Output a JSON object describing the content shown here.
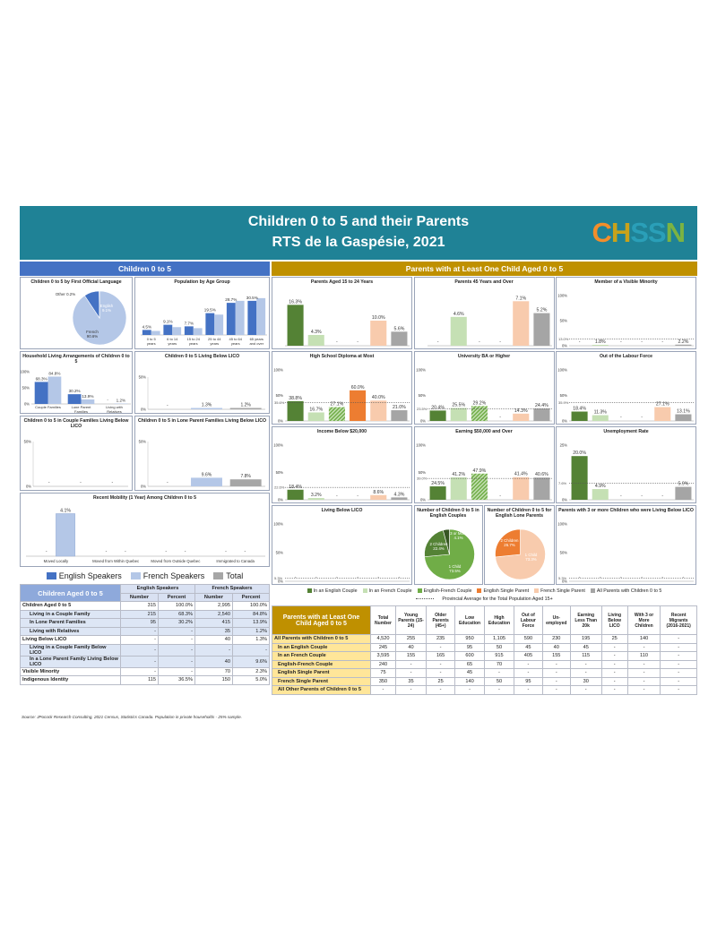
{
  "header": {
    "title": "Children 0 to 5 and their Parents",
    "subtitle": "RTS de la Gaspésie, 2021",
    "logo": [
      "C",
      "H",
      "S",
      "S",
      "N"
    ],
    "logo_colors": [
      "#f28e2b",
      "#c8a21a",
      "#2a9fb8",
      "#2a9fb8",
      "#7cb342"
    ]
  },
  "colors": {
    "banner": "#1f8296",
    "left_header": "#4472c4",
    "right_header": "#bf9000",
    "dark_green": "#548235",
    "light_green": "#c5e0b4",
    "hatch_green": "#70ad47",
    "orange": "#ed7d31",
    "peach": "#f8cbad",
    "grey": "#a5a5a5",
    "dark_blue": "#4472c4",
    "light_blue": "#b4c7e7",
    "mid_grey": "#a6a6a6",
    "table_head": "#d9e1f2",
    "right_table_head": "#ffe699",
    "right_row_bg": "#fff2cc"
  },
  "left_section_title": "Children 0 to 5",
  "right_section_title": "Parents with at Least One Child Aged 0 to 5",
  "legend_left": [
    {
      "label": "English Speakers",
      "color": "#4472c4"
    },
    {
      "label": "French Speakers",
      "color": "#b4c7e7"
    },
    {
      "label": "Total",
      "color": "#a6a6a6"
    }
  ],
  "legend_right": {
    "items": [
      {
        "label": "In an English Couple",
        "color": "#548235"
      },
      {
        "label": "In an French Couple",
        "color": "#c5e0b4"
      },
      {
        "label": "English-French Couple",
        "color": "#70ad47"
      },
      {
        "label": "English Single Parent",
        "color": "#ed7d31"
      },
      {
        "label": "French Single Parent",
        "color": "#f8cbad"
      },
      {
        "label": "All Parents with Children 0 to 5",
        "color": "#a5a5a5"
      }
    ],
    "note": "Provincial Average for the Total Population Aged 15+"
  },
  "chart_data": [
    {
      "id": "lang",
      "type": "pie",
      "title": "Children 0 to 5 by First Official Language",
      "slices": [
        {
          "label": "French",
          "value": 90.6,
          "text": "French\n90.6%"
        },
        {
          "label": "English",
          "value": 9.1,
          "text": "English\n9.1%"
        },
        {
          "label": "Other",
          "value": 0.2,
          "text": "Other 0.2%"
        }
      ]
    },
    {
      "id": "age",
      "type": "bar",
      "title": "Population by Age Group",
      "categories": [
        "0 to 5 years",
        "6 to 14 years",
        "15 to 24 years",
        "25 to 44 years",
        "45 to 64 years",
        "65 years and over"
      ],
      "cat_lines": [
        [
          "0 to 5",
          "years"
        ],
        [
          "6 to 14",
          "years"
        ],
        [
          "15 to 24",
          "years"
        ],
        [
          "25 to 44",
          "years"
        ],
        [
          "45 to 64",
          "years"
        ],
        [
          "65 years",
          "and over"
        ]
      ],
      "series": [
        {
          "values": [
            4.5,
            9.1,
            7.7,
            19.5,
            28.7,
            30.5
          ]
        },
        {
          "values": [
            3.6,
            7.0,
            6.1,
            18.2,
            30.5,
            32.9
          ]
        }
      ],
      "labels": [
        "4.5%",
        "9.1%",
        "7.7%",
        "19.5%",
        "28.7%",
        "30.5%"
      ],
      "ylim": [
        0,
        40
      ]
    },
    {
      "id": "household",
      "type": "bar",
      "title": "Household Living Arrangements of Children 0 to 5",
      "categories": [
        "Couple Families",
        "Lone Parent Families",
        "Living with Relatives"
      ],
      "cat_lines": [
        [
          "Couple Families"
        ],
        [
          "Lone Parent",
          "Families"
        ],
        [
          "Living with",
          "Relatives"
        ]
      ],
      "series": [
        {
          "values": [
            68.3,
            30.2,
            null
          ],
          "labels": [
            "68.3%",
            "30.2%",
            "-"
          ]
        },
        {
          "values": [
            84.8,
            13.9,
            1.2
          ],
          "labels": [
            "84.8%",
            "13.9%",
            "1.2%"
          ]
        }
      ],
      "yticks": [
        "100%",
        "50%",
        "0%"
      ],
      "ylim": [
        0,
        100
      ]
    },
    {
      "id": "lico",
      "type": "bar",
      "title": "Children 0 to 5 Living Below LICO",
      "series": [
        {
          "values": [
            null
          ],
          "labels": [
            "-"
          ]
        },
        {
          "values": [
            1.3
          ],
          "labels": [
            "1.3%"
          ]
        },
        {
          "values": [
            1.2
          ],
          "labels": [
            "1.2%"
          ]
        }
      ],
      "yticks": [
        "50%",
        "0%"
      ],
      "ylim": [
        0,
        50
      ]
    },
    {
      "id": "couple_lico",
      "type": "bar",
      "title": "Children 0 to 5 in Couple Families Living Below LICO",
      "series": [
        {
          "values": [
            null
          ],
          "labels": [
            "-"
          ]
        },
        {
          "values": [
            null
          ],
          "labels": [
            "-"
          ]
        },
        {
          "values": [
            null
          ],
          "labels": [
            "-"
          ]
        }
      ],
      "yticks": [
        "50%",
        "0%"
      ],
      "ylim": [
        0,
        50
      ]
    },
    {
      "id": "lone_lico",
      "type": "bar",
      "title": "Children 0 to 5 in Lone Parent Families Living Below LICO",
      "series": [
        {
          "values": [
            null
          ],
          "labels": [
            "-"
          ]
        },
        {
          "values": [
            9.6
          ],
          "labels": [
            "9.6%"
          ]
        },
        {
          "values": [
            7.8
          ],
          "labels": [
            "7.8%"
          ]
        }
      ],
      "yticks": [
        "50%",
        "0%"
      ],
      "ylim": [
        0,
        50
      ]
    },
    {
      "id": "mobility",
      "type": "bar",
      "title": "Recent Mobility (1 Year) Among Children 0 to 5",
      "categories": [
        "Moved Locally",
        "Moved from Within Quebec",
        "Moved from Outside Quebec",
        "Immigrated to Canada"
      ],
      "series": [
        {
          "values": [
            null,
            null,
            null,
            null
          ],
          "labels": [
            "-",
            "-",
            "-",
            "-"
          ]
        },
        {
          "values": [
            4.1,
            null,
            null,
            null
          ],
          "labels": [
            "4.1%",
            "-",
            "-",
            "-"
          ]
        }
      ],
      "ylim": [
        0,
        5
      ]
    },
    {
      "id": "p1524",
      "type": "bar",
      "title": "Parents Aged 15 to 24 Years",
      "values": [
        16.3,
        4.3,
        null,
        null,
        10.0,
        5.6
      ],
      "labels": [
        "16.3%",
        "4.3%",
        "-",
        "-",
        "10.0%",
        "5.6%"
      ],
      "ylim": [
        0,
        20
      ]
    },
    {
      "id": "p45",
      "type": "bar",
      "title": "Parents 45 Years and Over",
      "values": [
        null,
        4.6,
        null,
        null,
        7.1,
        5.2
      ],
      "labels": [
        "-",
        "4.6%",
        "-",
        "-",
        "7.1%",
        "5.2%"
      ],
      "ylim": [
        0,
        8
      ]
    },
    {
      "id": "vismin",
      "type": "bar",
      "title": "Member of a Visible Minority",
      "values": [
        null,
        1.8,
        null,
        null,
        null,
        2.2
      ],
      "labels": [
        "-",
        "1.8%",
        "-",
        "-",
        "-",
        "2.2%"
      ],
      "yticks": [
        "100%",
        "50%",
        "0%"
      ],
      "ylim": [
        0,
        100
      ],
      "avg": 13.0,
      "avg_label": "13.0%"
    },
    {
      "id": "hsd",
      "type": "bar",
      "title": "High School Diploma at Most",
      "values": [
        38.8,
        16.7,
        27.1,
        60.0,
        40.0,
        21.0
      ],
      "labels": [
        "38.8%",
        "16.7%",
        "27.1%",
        "60.0%",
        "40.0%",
        "21.0%"
      ],
      "yticks": [
        "100%",
        "50%",
        "0%"
      ],
      "ylim": [
        0,
        100
      ],
      "avg": 35.6,
      "avg_label": "35.6%"
    },
    {
      "id": "ba",
      "type": "bar",
      "title": "University BA or Higher",
      "values": [
        20.4,
        25.5,
        29.2,
        null,
        14.3,
        24.4
      ],
      "labels": [
        "20.4%",
        "25.5%",
        "29.2%",
        "-",
        "14.3%",
        "24.4%"
      ],
      "yticks": [
        "100%",
        "50%",
        "0%"
      ],
      "ylim": [
        0,
        100
      ],
      "avg": 23.5,
      "avg_label": "23.5%"
    },
    {
      "id": "olf",
      "type": "bar",
      "title": "Out of the Labour Force",
      "values": [
        18.4,
        11.3,
        null,
        null,
        27.1,
        13.1
      ],
      "labels": [
        "18.4%",
        "11.3%",
        "-",
        "-",
        "27.1%",
        "13.1%"
      ],
      "yticks": [
        "100%",
        "50%",
        "0%"
      ],
      "ylim": [
        0,
        100
      ],
      "avg": 35.9,
      "avg_label": "35.9%"
    },
    {
      "id": "inc20",
      "type": "bar",
      "title": "Income Below $20,000",
      "values": [
        18.4,
        3.2,
        null,
        null,
        8.6,
        4.3
      ],
      "labels": [
        "18.4%",
        "3.2%",
        "-",
        "-",
        "8.6%",
        "4.3%"
      ],
      "yticks": [
        "100%",
        "50%",
        "0%"
      ],
      "ylim": [
        0,
        100
      ],
      "avg": 22.6,
      "avg_label": "22.6%"
    },
    {
      "id": "earn50",
      "type": "bar",
      "title": "Earning $50,000 and Over",
      "values": [
        24.5,
        41.2,
        47.9,
        null,
        41.4,
        40.6
      ],
      "labels": [
        "24.5%",
        "41.2%",
        "47.9%",
        "-",
        "41.4%",
        "40.6%"
      ],
      "yticks": [
        "100%",
        "50%",
        "0%"
      ],
      "ylim": [
        0,
        100
      ],
      "avg": 39.0,
      "avg_label": "39.0%"
    },
    {
      "id": "unemp",
      "type": "bar",
      "title": "Unemployment Rate",
      "values": [
        20.0,
        4.9,
        null,
        null,
        null,
        5.9
      ],
      "labels": [
        "20.0%",
        "4.9%",
        "-",
        "-",
        "-",
        "5.9%"
      ],
      "yticks": [
        "25%",
        "0%"
      ],
      "ylim": [
        0,
        25
      ],
      "avg": 7.6,
      "avg_label": "7.6%"
    },
    {
      "id": "livlico",
      "type": "bar",
      "title": "Living Below LICO",
      "values": [
        null,
        null,
        null,
        null,
        null,
        null
      ],
      "labels": [
        "-",
        "-",
        "-",
        "-",
        "-",
        "-"
      ],
      "yticks": [
        "100%",
        "50%",
        "0%"
      ],
      "ylim": [
        0,
        100
      ],
      "avg": 5.3,
      "avg_label": "5.3%"
    },
    {
      "id": "pie_eng",
      "type": "pie",
      "title": "Number of Children 0 to 5 in English Couples",
      "slices": [
        {
          "label": "1 Child",
          "value": 73.5,
          "text": "1 Child\n73.5%"
        },
        {
          "label": "2 Children",
          "value": 22.4,
          "text": "2 Children\n22.4%"
        },
        {
          "label": "3 or More",
          "value": 4.1,
          "text": "3 or More\n4.1%"
        }
      ]
    },
    {
      "id": "pie_lone",
      "type": "pie",
      "title": "Number of Children 0 to 5 for English Lone Parents",
      "slices": [
        {
          "label": "1 Child",
          "value": 73.3,
          "text": "1 Child\n73.3%"
        },
        {
          "label": "2 Children",
          "value": 26.7,
          "text": "2 Children\n26.7%"
        }
      ]
    },
    {
      "id": "three",
      "type": "bar",
      "title": "Parents with 3 or more Children who were Living Below LICO",
      "values": [
        null,
        null,
        null,
        null,
        null,
        null
      ],
      "labels": [
        "-",
        "-",
        "-",
        "-",
        "-",
        "-"
      ],
      "yticks": [
        "100%",
        "50%",
        "0%"
      ],
      "ylim": [
        0,
        100
      ],
      "avg": 5.3,
      "avg_label": "5.3%"
    }
  ],
  "left_table": {
    "title": "Children Aged 0 to 5",
    "group_headers": [
      "English Speakers",
      "French Speakers"
    ],
    "sub_headers": [
      "Number",
      "Percent",
      "Number",
      "Percent"
    ],
    "rows": [
      {
        "label": "Children Aged 0 to 5",
        "indent": 0,
        "cells": [
          "315",
          "100.0%",
          "2,995",
          "100.0%"
        ]
      },
      {
        "label": "Living in a Couple Family",
        "indent": 1,
        "cells": [
          "215",
          "68.3%",
          "2,540",
          "84.8%"
        ]
      },
      {
        "label": "In Lone Parent Families",
        "indent": 1,
        "cells": [
          "95",
          "30.2%",
          "415",
          "13.9%"
        ]
      },
      {
        "label": "Living with Relatives",
        "indent": 1,
        "cells": [
          "-",
          "-",
          "35",
          "1.2%"
        ]
      },
      {
        "label": "Living Below LICO",
        "indent": 0,
        "cells": [
          "-",
          "-",
          "40",
          "1.3%"
        ]
      },
      {
        "label": "Living in a Couple Family Below LICO",
        "indent": 1,
        "cells": [
          "-",
          "-",
          "-",
          "-"
        ]
      },
      {
        "label": "In a Lone Parent Family Living Below LICO",
        "indent": 1,
        "cells": [
          "-",
          "-",
          "40",
          "9.6%"
        ]
      },
      {
        "label": "Visible Minority",
        "indent": 0,
        "cells": [
          "-",
          "-",
          "70",
          "2.3%"
        ]
      },
      {
        "label": "Indigenous Identity",
        "indent": 0,
        "cells": [
          "115",
          "36.5%",
          "150",
          "5.0%"
        ]
      }
    ]
  },
  "right_table": {
    "title": "Parents with at Least One Child Aged 0 to 5",
    "headers": [
      "Total Number",
      "Young Parents (15-24)",
      "Older Parents (45+)",
      "Low Education",
      "High Education",
      "Out of Labour Force",
      "Un-employed",
      "Earning Less Than 20k",
      "Living Below LICO",
      "With 3 or More Children",
      "Recent Migrants (2016-2021)"
    ],
    "rows": [
      {
        "label": "All Parents with Children 0 to 5",
        "cells": [
          "4,520",
          "255",
          "235",
          "950",
          "1,105",
          "590",
          "230",
          "195",
          "25",
          "140",
          "-"
        ]
      },
      {
        "label": "In an English Couple",
        "cells": [
          "245",
          "40",
          "-",
          "95",
          "50",
          "45",
          "40",
          "45",
          "-",
          "-",
          "-"
        ]
      },
      {
        "label": "In an French Couple",
        "cells": [
          "3,595",
          "155",
          "165",
          "600",
          "915",
          "405",
          "155",
          "115",
          "-",
          "110",
          "-"
        ]
      },
      {
        "label": "English-French Couple",
        "cells": [
          "240",
          "-",
          "-",
          "65",
          "70",
          "-",
          "-",
          "-",
          "-",
          "-",
          "-"
        ]
      },
      {
        "label": "English Single Parent",
        "cells": [
          "75",
          "-",
          "-",
          "45",
          "-",
          "-",
          "-",
          "-",
          "-",
          "-",
          "-"
        ]
      },
      {
        "label": "French Single Parent",
        "cells": [
          "350",
          "35",
          "25",
          "140",
          "50",
          "95",
          "-",
          "30",
          "-",
          "-",
          "-"
        ]
      },
      {
        "label": "All Other Parents of Children 0 to 5",
        "cells": [
          "-",
          "-",
          "-",
          "-",
          "-",
          "-",
          "-",
          "-",
          "-",
          "-",
          "-"
        ]
      }
    ]
  },
  "source": "Source: JPocock Research Consulting, 2021 Census, Statistics Canada. Population in private households - 25% sample."
}
